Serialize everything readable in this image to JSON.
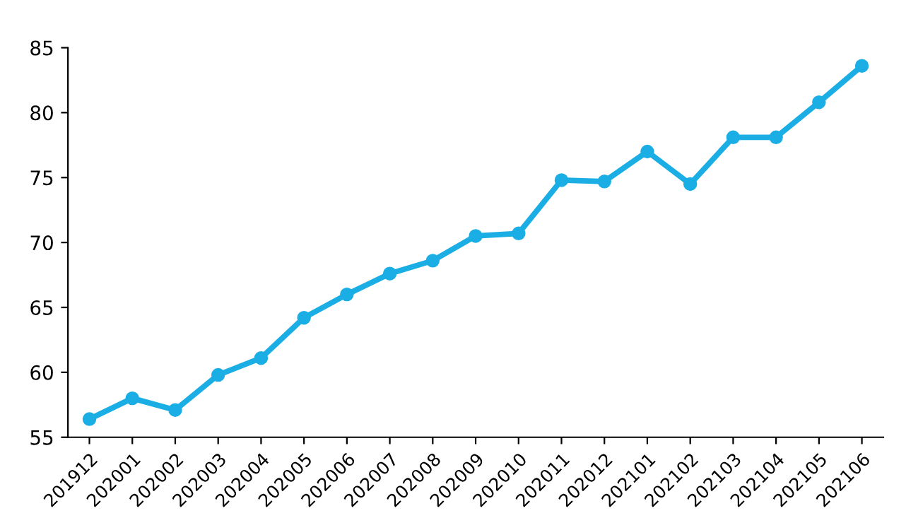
{
  "chart_data": {
    "type": "line",
    "categories": [
      "201912",
      "202001",
      "202002",
      "202003",
      "202004",
      "202005",
      "202006",
      "202007",
      "202008",
      "202009",
      "202010",
      "202011",
      "202012",
      "202101",
      "202102",
      "202103",
      "202104",
      "202105",
      "202106"
    ],
    "series": [
      {
        "color": "#1aaee5",
        "values": [
          56.4,
          58.0,
          57.1,
          59.8,
          61.1,
          64.2,
          66.0,
          67.6,
          68.6,
          70.5,
          70.7,
          74.8,
          74.7,
          77.0,
          74.5,
          78.1,
          78.1,
          80.8,
          83.6
        ]
      }
    ],
    "ylim": [
      55,
      85
    ],
    "yticks": [
      55,
      60,
      65,
      70,
      75,
      80,
      85
    ],
    "grid": false,
    "legend": false,
    "marker": "circle",
    "line_style": "solid"
  }
}
